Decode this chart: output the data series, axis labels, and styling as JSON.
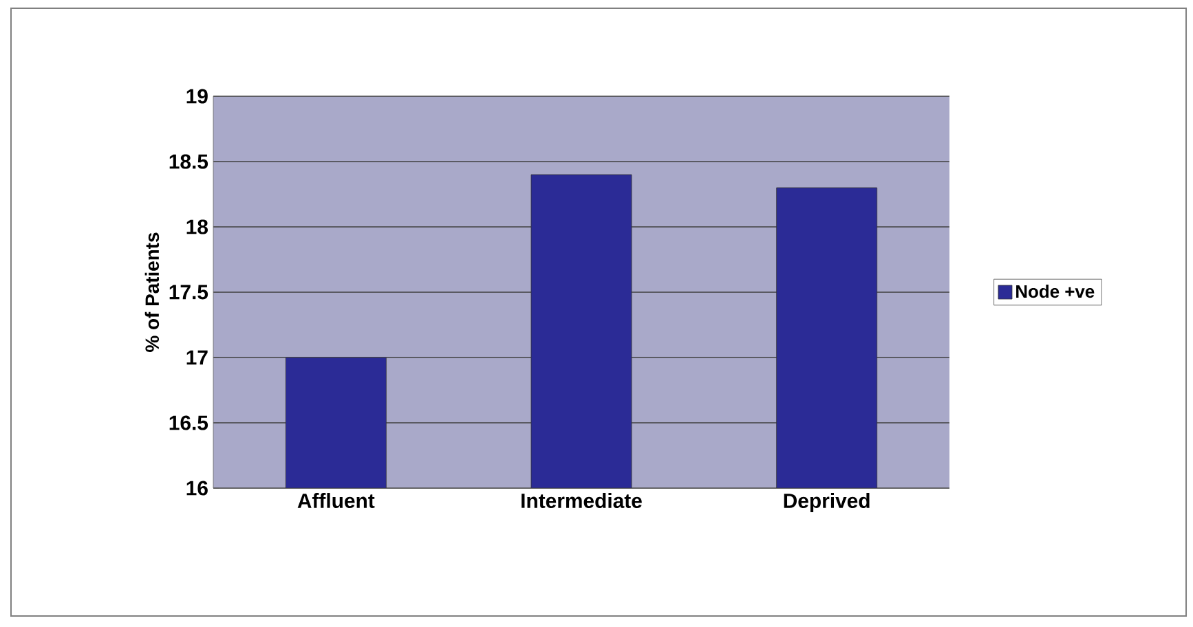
{
  "chart_data": {
    "type": "bar",
    "ylabel": "% of Patients",
    "categories": [
      "Affluent",
      "Intermediate",
      "Deprived"
    ],
    "series": [
      {
        "name": "Node +ve",
        "color": "#2b2b96",
        "values": [
          17.0,
          18.4,
          18.3
        ]
      }
    ],
    "ylim": [
      16,
      19
    ],
    "yticks": [
      16,
      16.5,
      17,
      17.5,
      18,
      18.5,
      19
    ],
    "grid": "y",
    "legend": "right"
  }
}
